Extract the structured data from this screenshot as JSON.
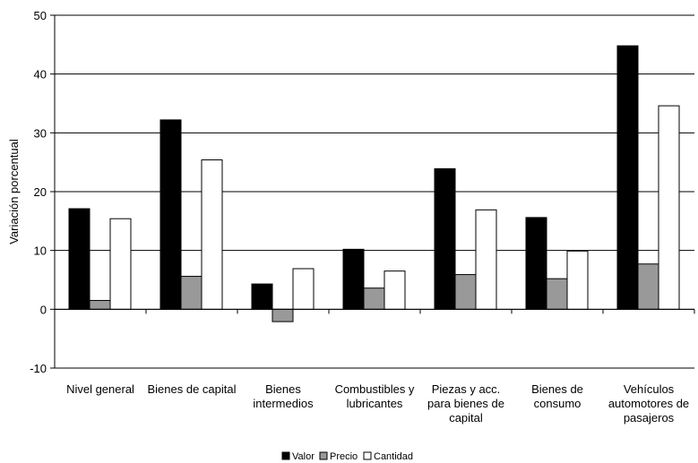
{
  "chart_data": {
    "type": "bar",
    "ylabel": "Variación porcentual",
    "ylim": [
      -10,
      50
    ],
    "yticks": [
      -10,
      0,
      10,
      20,
      30,
      40,
      50
    ],
    "grid": true,
    "legend_position": "bottom",
    "categories": [
      [
        "Nivel general"
      ],
      [
        "Bienes de capital"
      ],
      [
        "Bienes",
        "intermedios"
      ],
      [
        "Combustibles y",
        "lubricantes"
      ],
      [
        "Piezas y acc.",
        "para bienes de",
        "capital"
      ],
      [
        "Bienes de",
        "consumo"
      ],
      [
        "Vehículos",
        "automotores de",
        "pasajeros"
      ]
    ],
    "series": [
      {
        "name": "Valor",
        "color": "#000000",
        "values": [
          17.1,
          32.2,
          4.3,
          10.2,
          23.9,
          15.6,
          44.8
        ]
      },
      {
        "name": "Precio",
        "color": "#999999",
        "values": [
          1.5,
          5.6,
          -2.1,
          3.6,
          5.9,
          5.2,
          7.7
        ]
      },
      {
        "name": "Cantidad",
        "color": "#ffffff",
        "values": [
          15.4,
          25.4,
          6.9,
          6.5,
          16.9,
          9.9,
          34.6
        ]
      }
    ]
  }
}
